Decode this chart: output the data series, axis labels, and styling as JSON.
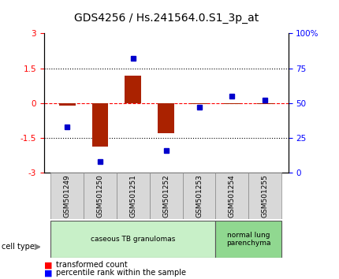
{
  "title": "GDS4256 / Hs.241564.0.S1_3p_at",
  "samples": [
    "GSM501249",
    "GSM501250",
    "GSM501251",
    "GSM501252",
    "GSM501253",
    "GSM501254",
    "GSM501255"
  ],
  "transformed_count": [
    -0.1,
    -1.85,
    1.2,
    -1.3,
    -0.05,
    -0.05,
    -0.05
  ],
  "percentile_rank": [
    33,
    8,
    82,
    16,
    47,
    55,
    52
  ],
  "ylim_left": [
    -3,
    3
  ],
  "ylim_right": [
    0,
    100
  ],
  "yticks_left": [
    -3,
    -1.5,
    0,
    1.5,
    3
  ],
  "yticks_right": [
    0,
    25,
    50,
    75,
    100
  ],
  "yticklabels_left": [
    "-3",
    "-1.5",
    "0",
    "1.5",
    "3"
  ],
  "yticklabels_right": [
    "0",
    "25",
    "50",
    "75",
    "100%"
  ],
  "cell_type_groups": [
    {
      "label": "caseous TB granulomas",
      "start": 0,
      "end": 5,
      "color": "#c8f0c8"
    },
    {
      "label": "normal lung\nparenchyma",
      "start": 5,
      "end": 7,
      "color": "#90d890"
    }
  ],
  "bar_color": "#aa2200",
  "dot_color": "#0000cc",
  "bar_width": 0.5,
  "background_color": "#ffffff",
  "tick_fontsize": 7.5,
  "title_fontsize": 10
}
